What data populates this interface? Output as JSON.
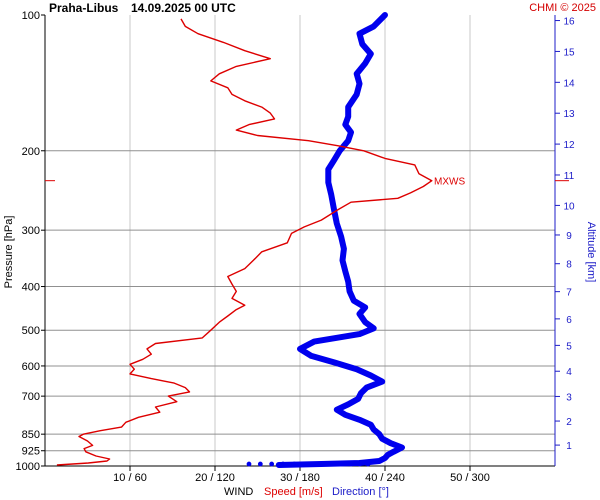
{
  "header": {
    "station": "Praha-Libus",
    "datetime": "14.09.2025 00 UTC",
    "copyright": "CHMI © 2025"
  },
  "labels": {
    "wind": "WIND",
    "speed": "Speed [m/s]",
    "direction": "Direction [°]",
    "max_wind": "MXWS"
  },
  "colors": {
    "speed": "#dd0000",
    "direction": "#0000ee",
    "grid": "#c8c8c8",
    "pressure_grid": "#909090",
    "altitude_axis": "#1c1cc8"
  },
  "chart_data": {
    "type": "line",
    "ylabel": "Pressure [hPa]",
    "y2label": "Altitude [km]",
    "pressure_range": [
      1000,
      100
    ],
    "pressure_scale": "log",
    "pressure_ticks": [
      100,
      200,
      300,
      400,
      500,
      600,
      700,
      850,
      925,
      1000
    ],
    "x_range": [
      0,
      60
    ],
    "x_ticks": [
      {
        "speed": 10,
        "direction": 60,
        "label": "10 / 60"
      },
      {
        "speed": 20,
        "direction": 120,
        "label": "20 / 120"
      },
      {
        "speed": 30,
        "direction": 180,
        "label": "30 / 180"
      },
      {
        "speed": 40,
        "direction": 240,
        "label": "40 / 240"
      },
      {
        "speed": 50,
        "direction": 300,
        "label": "50 / 300"
      }
    ],
    "altitude_ticks_km": [
      1,
      2,
      3,
      4,
      5,
      6,
      7,
      8,
      9,
      10,
      11,
      12,
      13,
      14,
      15,
      16
    ],
    "max_wind_level_hPa": 233,
    "series": [
      {
        "name": "Speed [m/s]",
        "unit": "m/s",
        "points": [
          {
            "p": 995,
            "v": 1.4
          },
          {
            "p": 985,
            "v": 5.1
          },
          {
            "p": 975,
            "v": 7.3
          },
          {
            "p": 965,
            "v": 7.6
          },
          {
            "p": 950,
            "v": 6.0
          },
          {
            "p": 930,
            "v": 4.8
          },
          {
            "p": 915,
            "v": 4.6
          },
          {
            "p": 900,
            "v": 5.6
          },
          {
            "p": 880,
            "v": 5.0
          },
          {
            "p": 860,
            "v": 4.0
          },
          {
            "p": 850,
            "v": 4.5
          },
          {
            "p": 835,
            "v": 6.5
          },
          {
            "p": 820,
            "v": 9.0
          },
          {
            "p": 800,
            "v": 9.5
          },
          {
            "p": 780,
            "v": 11.0
          },
          {
            "p": 760,
            "v": 13.5
          },
          {
            "p": 740,
            "v": 13.0
          },
          {
            "p": 720,
            "v": 15.5
          },
          {
            "p": 700,
            "v": 14.5
          },
          {
            "p": 685,
            "v": 17.0
          },
          {
            "p": 670,
            "v": 16.5
          },
          {
            "p": 655,
            "v": 15.2
          },
          {
            "p": 640,
            "v": 12.5
          },
          {
            "p": 625,
            "v": 10.0
          },
          {
            "p": 610,
            "v": 10.5
          },
          {
            "p": 595,
            "v": 10.0
          },
          {
            "p": 580,
            "v": 11.5
          },
          {
            "p": 565,
            "v": 12.5
          },
          {
            "p": 550,
            "v": 12.0
          },
          {
            "p": 535,
            "v": 13.0
          },
          {
            "p": 520,
            "v": 18.5
          },
          {
            "p": 500,
            "v": 19.5
          },
          {
            "p": 480,
            "v": 20.5
          },
          {
            "p": 465,
            "v": 21.5
          },
          {
            "p": 450,
            "v": 22.5
          },
          {
            "p": 440,
            "v": 23.5
          },
          {
            "p": 425,
            "v": 22.0
          },
          {
            "p": 410,
            "v": 22.5
          },
          {
            "p": 395,
            "v": 22.0
          },
          {
            "p": 380,
            "v": 21.5
          },
          {
            "p": 365,
            "v": 23.5
          },
          {
            "p": 350,
            "v": 24.5
          },
          {
            "p": 335,
            "v": 25.5
          },
          {
            "p": 320,
            "v": 28.5
          },
          {
            "p": 305,
            "v": 29.0
          },
          {
            "p": 295,
            "v": 30.5
          },
          {
            "p": 285,
            "v": 32.5
          },
          {
            "p": 270,
            "v": 34.5
          },
          {
            "p": 260,
            "v": 36.0
          },
          {
            "p": 255,
            "v": 41.5
          },
          {
            "p": 248,
            "v": 43.0
          },
          {
            "p": 240,
            "v": 44.5
          },
          {
            "p": 233,
            "v": 45.5
          },
          {
            "p": 225,
            "v": 44.0
          },
          {
            "p": 215,
            "v": 43.5
          },
          {
            "p": 208,
            "v": 40.0
          },
          {
            "p": 200,
            "v": 37.5
          },
          {
            "p": 195,
            "v": 34.5
          },
          {
            "p": 190,
            "v": 31.0
          },
          {
            "p": 185,
            "v": 25.0
          },
          {
            "p": 180,
            "v": 22.5
          },
          {
            "p": 175,
            "v": 24.0
          },
          {
            "p": 170,
            "v": 27.0
          },
          {
            "p": 165,
            "v": 26.5
          },
          {
            "p": 160,
            "v": 25.5
          },
          {
            "p": 155,
            "v": 23.5
          },
          {
            "p": 150,
            "v": 22.0
          },
          {
            "p": 145,
            "v": 21.5
          },
          {
            "p": 140,
            "v": 19.5
          },
          {
            "p": 135,
            "v": 20.5
          },
          {
            "p": 130,
            "v": 22.5
          },
          {
            "p": 125,
            "v": 26.5
          },
          {
            "p": 120,
            "v": 23.5
          },
          {
            "p": 115,
            "v": 21.0
          },
          {
            "p": 110,
            "v": 18.0
          },
          {
            "p": 106,
            "v": 16.5
          },
          {
            "p": 102,
            "v": 16.0
          }
        ]
      },
      {
        "name": "Direction [°]",
        "unit": "degrees",
        "points": [
          {
            "p": 995,
            "d": 165
          },
          {
            "p": 990,
            "d": 195
          },
          {
            "p": 985,
            "d": 222
          },
          {
            "p": 975,
            "d": 236
          },
          {
            "p": 960,
            "d": 240
          },
          {
            "p": 945,
            "d": 242
          },
          {
            "p": 930,
            "d": 246
          },
          {
            "p": 910,
            "d": 252
          },
          {
            "p": 890,
            "d": 244
          },
          {
            "p": 870,
            "d": 238
          },
          {
            "p": 850,
            "d": 236
          },
          {
            "p": 830,
            "d": 232
          },
          {
            "p": 810,
            "d": 230
          },
          {
            "p": 790,
            "d": 222
          },
          {
            "p": 770,
            "d": 212
          },
          {
            "p": 750,
            "d": 206
          },
          {
            "p": 730,
            "d": 214
          },
          {
            "p": 710,
            "d": 221
          },
          {
            "p": 690,
            "d": 223
          },
          {
            "p": 670,
            "d": 227
          },
          {
            "p": 650,
            "d": 238
          },
          {
            "p": 630,
            "d": 230
          },
          {
            "p": 610,
            "d": 220
          },
          {
            "p": 590,
            "d": 205
          },
          {
            "p": 570,
            "d": 188
          },
          {
            "p": 550,
            "d": 180
          },
          {
            "p": 530,
            "d": 190
          },
          {
            "p": 510,
            "d": 222
          },
          {
            "p": 495,
            "d": 232
          },
          {
            "p": 480,
            "d": 226
          },
          {
            "p": 460,
            "d": 222
          },
          {
            "p": 445,
            "d": 226
          },
          {
            "p": 430,
            "d": 218
          },
          {
            "p": 410,
            "d": 215
          },
          {
            "p": 390,
            "d": 214
          },
          {
            "p": 370,
            "d": 212
          },
          {
            "p": 350,
            "d": 210
          },
          {
            "p": 330,
            "d": 211
          },
          {
            "p": 310,
            "d": 209
          },
          {
            "p": 290,
            "d": 206
          },
          {
            "p": 270,
            "d": 204
          },
          {
            "p": 250,
            "d": 202
          },
          {
            "p": 235,
            "d": 200
          },
          {
            "p": 220,
            "d": 200
          },
          {
            "p": 210,
            "d": 204
          },
          {
            "p": 200,
            "d": 208
          },
          {
            "p": 190,
            "d": 214
          },
          {
            "p": 182,
            "d": 216
          },
          {
            "p": 175,
            "d": 212
          },
          {
            "p": 168,
            "d": 214
          },
          {
            "p": 160,
            "d": 214
          },
          {
            "p": 150,
            "d": 220
          },
          {
            "p": 142,
            "d": 222
          },
          {
            "p": 135,
            "d": 220
          },
          {
            "p": 128,
            "d": 226
          },
          {
            "p": 122,
            "d": 230
          },
          {
            "p": 116,
            "d": 224
          },
          {
            "p": 110,
            "d": 222
          },
          {
            "p": 106,
            "d": 232
          },
          {
            "p": 103,
            "d": 236
          },
          {
            "p": 100,
            "d": 240
          }
        ]
      }
    ],
    "surface_direction_dots_deg": [
      144,
      152,
      160,
      168,
      176,
      184,
      192,
      200,
      208,
      216,
      222,
      228
    ]
  }
}
